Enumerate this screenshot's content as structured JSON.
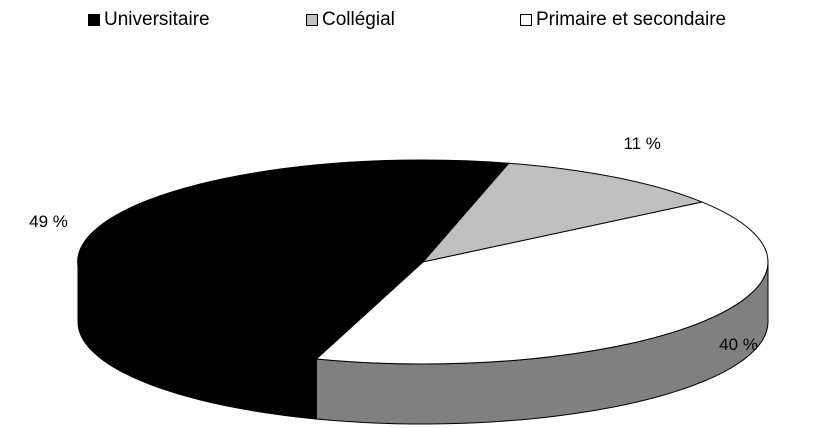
{
  "chart_data": {
    "type": "pie",
    "title": "",
    "categories": [
      "Universitaire",
      "Collégial",
      "Primaire et secondaire"
    ],
    "values": [
      49,
      11,
      40
    ],
    "value_labels": [
      "49 %",
      "11 %",
      "40 %"
    ],
    "colors": [
      "#000000",
      "#bfbfbf",
      "#ffffff"
    ],
    "side_colors": [
      "#000000",
      "#595959",
      "#808080"
    ],
    "legend_position": "top",
    "style": "3d-tilted"
  }
}
